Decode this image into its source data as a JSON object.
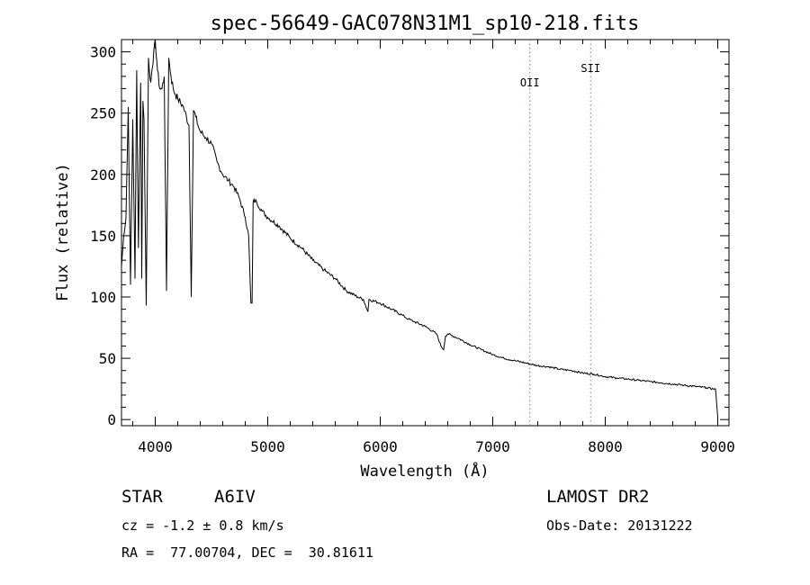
{
  "chart_data": {
    "type": "line",
    "title": "spec-56649-GAC078N31M1_sp10-218.fits",
    "xlabel": "Wavelength (Å)",
    "ylabel": "Flux (relative)",
    "xlim": [
      3700,
      9100
    ],
    "ylim": [
      -5,
      310
    ],
    "xticks": [
      4000,
      5000,
      6000,
      7000,
      8000,
      9000
    ],
    "yticks": [
      0,
      50,
      100,
      150,
      200,
      250,
      300
    ],
    "grid": false,
    "series": [
      {
        "name": "flux",
        "x": [
          3700,
          3720,
          3740,
          3760,
          3780,
          3800,
          3820,
          3835,
          3850,
          3870,
          3880,
          3890,
          3900,
          3920,
          3940,
          3960,
          3970,
          3980,
          4000,
          4020,
          4040,
          4060,
          4080,
          4100,
          4120,
          4140,
          4160,
          4180,
          4200,
          4250,
          4300,
          4320,
          4340,
          4360,
          4380,
          4400,
          4450,
          4500,
          4550,
          4600,
          4650,
          4700,
          4750,
          4800,
          4830,
          4850,
          4861,
          4870,
          4900,
          4950,
          5000,
          5100,
          5200,
          5300,
          5400,
          5500,
          5600,
          5700,
          5800,
          5850,
          5890,
          5900,
          6000,
          6100,
          6200,
          6250,
          6300,
          6400,
          6500,
          6540,
          6563,
          6580,
          6600,
          6700,
          6800,
          6900,
          7000,
          7100,
          7200,
          7300,
          7400,
          7500,
          7600,
          7700,
          7800,
          7900,
          8000,
          8100,
          8200,
          8300,
          8400,
          8500,
          8600,
          8700,
          8800,
          8900,
          8960,
          8980,
          9000
        ],
        "values": [
          125,
          150,
          165,
          255,
          110,
          245,
          115,
          285,
          140,
          275,
          115,
          260,
          245,
          93,
          295,
          275,
          285,
          290,
          310,
          285,
          270,
          270,
          280,
          105,
          295,
          280,
          270,
          265,
          262,
          255,
          240,
          100,
          252,
          247,
          240,
          235,
          230,
          225,
          210,
          200,
          195,
          190,
          180,
          165,
          150,
          95,
          95,
          178,
          178,
          170,
          165,
          158,
          148,
          140,
          130,
          122,
          115,
          105,
          100,
          98,
          88,
          98,
          95,
          90,
          85,
          82,
          80,
          76,
          70,
          60,
          57,
          68,
          70,
          66,
          61,
          57,
          53,
          50,
          48,
          46,
          44,
          43,
          41,
          40,
          38,
          37,
          35,
          34,
          33,
          32,
          31,
          30,
          29,
          28,
          27,
          26,
          25,
          25,
          2
        ]
      }
    ],
    "annotations": [
      {
        "label": "OII",
        "x": 7330
      },
      {
        "label": "SII",
        "x": 7870
      }
    ]
  },
  "info": {
    "object_class": "STAR",
    "subclass": "A6IV",
    "survey": "LAMOST DR2",
    "redshift": "cz = -1.2 ± 0.8 km/s",
    "obs_date": "Obs-Date: 20131222",
    "coords": "RA =  77.00704, DEC =  30.81611"
  }
}
